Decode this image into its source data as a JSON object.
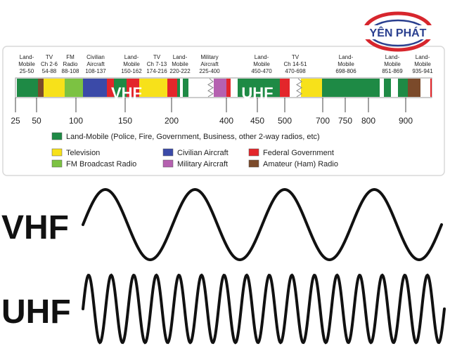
{
  "logo": {
    "text": "YÊN PHÁT"
  },
  "spectrum": {
    "top_labels": [
      {
        "lines": [
          "Land-",
          "Mobile",
          "25-50"
        ]
      },
      {
        "lines": [
          "TV",
          "Ch 2-6",
          "54-88"
        ]
      },
      {
        "lines": [
          "FM",
          "Radio",
          "88-108"
        ]
      },
      {
        "lines": [
          "Civilian",
          "Aircraft",
          "108-137"
        ]
      },
      {
        "lines": [
          "Land-",
          "Mobile",
          "150-162"
        ]
      },
      {
        "lines": [
          "TV",
          "Ch 7-13",
          "174-216"
        ]
      },
      {
        "lines": [
          "Land-",
          "Mobile",
          "220-222"
        ]
      },
      {
        "lines": [
          "Military",
          "Aircraft",
          "225-400"
        ]
      },
      {
        "lines": [
          "Land-",
          "Mobile",
          "450-470"
        ]
      },
      {
        "lines": [
          "TV",
          "Ch 14-51",
          "470-698"
        ]
      },
      {
        "lines": [
          "Land-",
          "Mobile",
          "698-806"
        ]
      },
      {
        "lines": [
          "Land-",
          "Mobile",
          "851-869"
        ]
      },
      {
        "lines": [
          "Land-",
          "Mobile",
          "935-941"
        ]
      }
    ],
    "band_overlays": {
      "vhf": "VHF",
      "uhf": "UHF"
    },
    "axis_ticks": [
      "25",
      "50",
      "100",
      "150",
      "200",
      "400",
      "450",
      "500",
      "700",
      "750",
      "800",
      "900"
    ],
    "legend": [
      {
        "label": "Land-Mobile (Police, Fire, Government, Business, other 2-way radios, etc)",
        "color": "#1e8a45"
      },
      {
        "label": "Television",
        "color": "#f7e11a"
      },
      {
        "label": "Civilian Aircraft",
        "color": "#3b4aa8"
      },
      {
        "label": "Federal Government",
        "color": "#e3262b"
      },
      {
        "label": "FM Broadcast Radio",
        "color": "#7cc242"
      },
      {
        "label": "Military Aircraft",
        "color": "#b561b0"
      },
      {
        "label": "Amateur (Ham) Radio",
        "color": "#7b4a2a"
      }
    ]
  },
  "waves": {
    "vhf_label": "VHF",
    "uhf_label": "UHF",
    "vhf_cycles": 4,
    "uhf_cycles": 16
  }
}
